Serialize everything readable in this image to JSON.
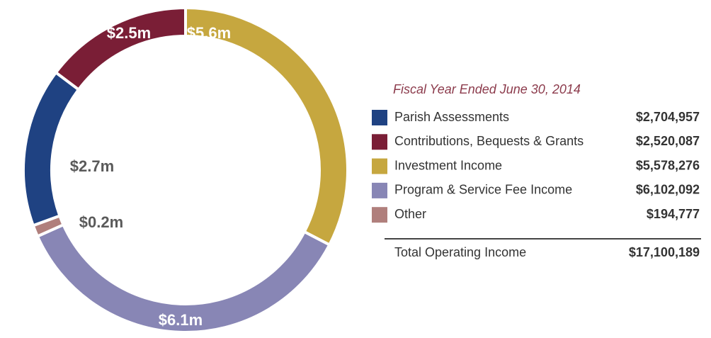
{
  "chart_data": {
    "type": "donut",
    "subtitle": "Fiscal Year Ended June 30, 2014",
    "categories": [
      "Parish Assessments",
      "Contributions, Bequests & Grants",
      "Investment Income",
      "Program & Service Fee Income",
      "Other"
    ],
    "values": [
      2704957,
      2520087,
      5578276,
      6102092,
      194777
    ],
    "value_labels": [
      "$2.7m",
      "$2.5m",
      "$5.6m",
      "$6.1m",
      "$0.2m"
    ],
    "amount_labels": [
      "$2,704,957",
      "$2,520,087",
      "$5,578,276",
      "$6,102,092",
      "$194,777"
    ],
    "colors": [
      "#1f4282",
      "#7a1e36",
      "#c6a73f",
      "#8886b5",
      "#b07f7c"
    ],
    "total": {
      "label": "Total Operating Income",
      "value": 17100189,
      "value_label": "$17,100,189"
    }
  }
}
